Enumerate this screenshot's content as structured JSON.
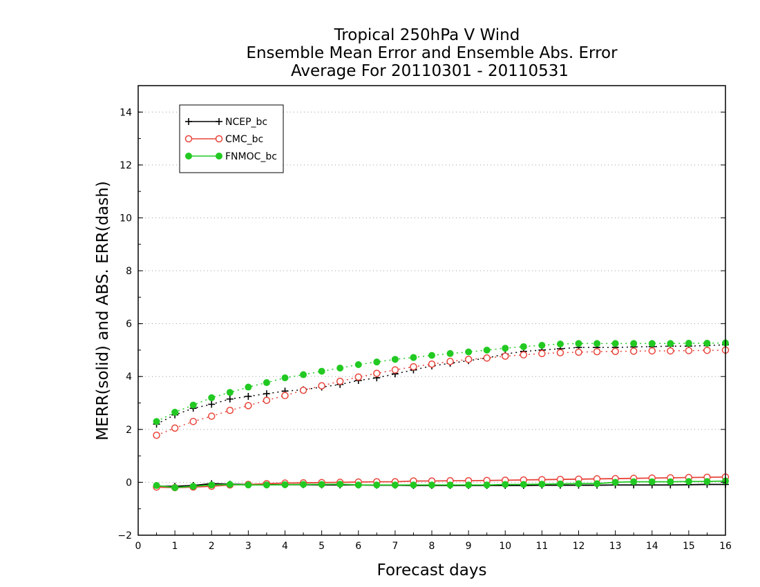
{
  "chart_data": {
    "type": "line",
    "title_lines": [
      "Tropical 250hPa V Wind",
      "Ensemble Mean Error and Ensemble Abs. Error",
      "Average For 20110301 - 20110531"
    ],
    "xlabel": "Forecast days",
    "ylabel": "MERR(solid) and ABS. ERR(dash)",
    "xlim": [
      0,
      16
    ],
    "ylim": [
      -2,
      15
    ],
    "xticks": [
      "0",
      "1",
      "2",
      "3",
      "4",
      "5",
      "6",
      "7",
      "8",
      "9",
      "10",
      "11",
      "12",
      "13",
      "14",
      "15",
      "16"
    ],
    "yticks": [
      "−2",
      "0",
      "2",
      "4",
      "6",
      "8",
      "10",
      "12",
      "14"
    ],
    "ytick_values": [
      -2,
      0,
      2,
      4,
      6,
      8,
      10,
      12,
      14
    ],
    "grid": "horizontal dotted",
    "legend_position": "top-left",
    "x": [
      0.5,
      1,
      1.5,
      2,
      2.5,
      3,
      3.5,
      4,
      4.5,
      5,
      5.5,
      6,
      6.5,
      7,
      7.5,
      8,
      8.5,
      9,
      9.5,
      10,
      10.5,
      11,
      11.5,
      12,
      12.5,
      13,
      13.5,
      14,
      14.5,
      15,
      15.5,
      16
    ],
    "series": [
      {
        "name": "NCEP_bc",
        "color": "#000000",
        "marker": "plus",
        "mean_error": [
          -0.15,
          -0.15,
          -0.12,
          -0.05,
          -0.07,
          -0.08,
          -0.09,
          -0.09,
          -0.09,
          -0.1,
          -0.1,
          -0.1,
          -0.11,
          -0.11,
          -0.12,
          -0.12,
          -0.12,
          -0.12,
          -0.12,
          -0.12,
          -0.12,
          -0.11,
          -0.11,
          -0.11,
          -0.11,
          -0.1,
          -0.1,
          -0.1,
          -0.1,
          -0.09,
          -0.08,
          -0.08
        ],
        "abs_error": [
          2.2,
          2.55,
          2.8,
          2.95,
          3.15,
          3.25,
          3.35,
          3.45,
          3.5,
          3.6,
          3.7,
          3.85,
          3.95,
          4.1,
          4.25,
          4.4,
          4.5,
          4.6,
          4.7,
          4.85,
          4.95,
          5.0,
          5.05,
          5.1,
          5.1,
          5.1,
          5.12,
          5.13,
          5.15,
          5.15,
          5.17,
          5.2
        ]
      },
      {
        "name": "CMC_bc",
        "color": "#e8443a",
        "marker": "open-circle",
        "mean_error": [
          -0.18,
          -0.2,
          -0.18,
          -0.15,
          -0.1,
          -0.08,
          -0.05,
          -0.03,
          -0.02,
          -0.01,
          0.0,
          0.01,
          0.02,
          0.02,
          0.05,
          0.05,
          0.06,
          0.06,
          0.07,
          0.08,
          0.09,
          0.1,
          0.11,
          0.12,
          0.13,
          0.14,
          0.15,
          0.16,
          0.17,
          0.18,
          0.19,
          0.2
        ],
        "abs_error": [
          1.78,
          2.05,
          2.3,
          2.5,
          2.72,
          2.9,
          3.1,
          3.28,
          3.48,
          3.65,
          3.82,
          3.98,
          4.12,
          4.25,
          4.37,
          4.47,
          4.57,
          4.65,
          4.7,
          4.77,
          4.82,
          4.87,
          4.9,
          4.92,
          4.94,
          4.95,
          4.96,
          4.97,
          4.97,
          4.98,
          4.99,
          5.0
        ]
      },
      {
        "name": "FNMOC_bc",
        "color": "#22c922",
        "marker": "filled-circle",
        "mean_error": [
          -0.12,
          -0.2,
          -0.15,
          -0.1,
          -0.08,
          -0.1,
          -0.1,
          -0.09,
          -0.08,
          -0.08,
          -0.07,
          -0.1,
          -0.1,
          -0.1,
          -0.1,
          -0.1,
          -0.1,
          -0.1,
          -0.1,
          -0.08,
          -0.08,
          -0.07,
          -0.06,
          -0.05,
          -0.05,
          0.0,
          0.02,
          0.02,
          0.02,
          0.03,
          0.03,
          0.05
        ],
        "abs_error": [
          2.3,
          2.65,
          2.92,
          3.2,
          3.4,
          3.6,
          3.77,
          3.95,
          4.07,
          4.2,
          4.32,
          4.45,
          4.55,
          4.65,
          4.72,
          4.8,
          4.87,
          4.93,
          5.0,
          5.07,
          5.13,
          5.18,
          5.23,
          5.25,
          5.25,
          5.25,
          5.25,
          5.25,
          5.25,
          5.26,
          5.26,
          5.27
        ]
      }
    ]
  }
}
